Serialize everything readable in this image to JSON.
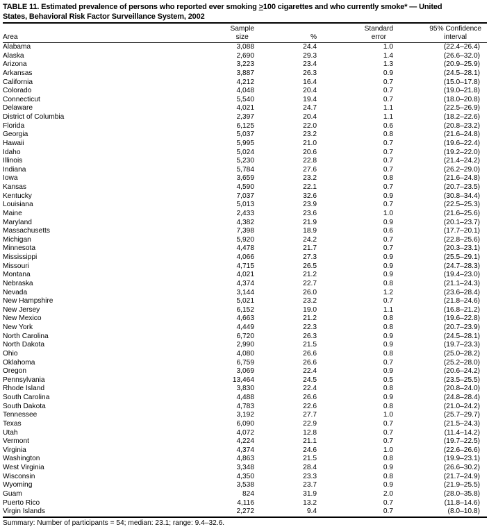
{
  "title": {
    "line1_pre": "TABLE 11. Estimated prevalence of persons who reported ever smoking ",
    "line1_geq": ">",
    "line1_post": "100 cigarettes and who currently smoke* — United",
    "line2": "States, Behavioral Risk Factor Surveillance System, 2002"
  },
  "columns": {
    "area": "Area",
    "sample_line1": "Sample",
    "sample_line2": "size",
    "percent": "%",
    "se_line1": "Standard",
    "se_line2": "error",
    "ci_line1": "95% Confidence",
    "ci_line2": "interval"
  },
  "rows": [
    {
      "area": "Alabama",
      "sample": "3,088",
      "pct": "24.4",
      "se": "1.0",
      "ci": "(22.4–26.4)"
    },
    {
      "area": "Alaska",
      "sample": "2,690",
      "pct": "29.3",
      "se": "1.4",
      "ci": "(26.6–32.0)"
    },
    {
      "area": "Arizona",
      "sample": "3,223",
      "pct": "23.4",
      "se": "1.3",
      "ci": "(20.9–25.9)"
    },
    {
      "area": "Arkansas",
      "sample": "3,887",
      "pct": "26.3",
      "se": "0.9",
      "ci": "(24.5–28.1)"
    },
    {
      "area": "California",
      "sample": "4,212",
      "pct": "16.4",
      "se": "0.7",
      "ci": "(15.0–17.8)"
    },
    {
      "area": "Colorado",
      "sample": "4,048",
      "pct": "20.4",
      "se": "0.7",
      "ci": "(19.0–21.8)"
    },
    {
      "area": "Connecticut",
      "sample": "5,540",
      "pct": "19.4",
      "se": "0.7",
      "ci": "(18.0–20.8)"
    },
    {
      "area": "Delaware",
      "sample": "4,021",
      "pct": "24.7",
      "se": "1.1",
      "ci": "(22.5–26.9)"
    },
    {
      "area": "District of Columbia",
      "sample": "2,397",
      "pct": "20.4",
      "se": "1.1",
      "ci": "(18.2–22.6)"
    },
    {
      "area": "Florida",
      "sample": "6,125",
      "pct": "22.0",
      "se": "0.6",
      "ci": "(20.8–23.2)"
    },
    {
      "area": "Georgia",
      "sample": "5,037",
      "pct": "23.2",
      "se": "0.8",
      "ci": "(21.6–24.8)"
    },
    {
      "area": "Hawaii",
      "sample": "5,995",
      "pct": "21.0",
      "se": "0.7",
      "ci": "(19.6–22.4)"
    },
    {
      "area": "Idaho",
      "sample": "5,024",
      "pct": "20.6",
      "se": "0.7",
      "ci": "(19.2–22.0)"
    },
    {
      "area": "Illinois",
      "sample": "5,230",
      "pct": "22.8",
      "se": "0.7",
      "ci": "(21.4–24.2)"
    },
    {
      "area": "Indiana",
      "sample": "5,784",
      "pct": "27.6",
      "se": "0.7",
      "ci": "(26.2–29.0)"
    },
    {
      "area": "Iowa",
      "sample": "3,659",
      "pct": "23.2",
      "se": "0.8",
      "ci": "(21.6–24.8)"
    },
    {
      "area": "Kansas",
      "sample": "4,590",
      "pct": "22.1",
      "se": "0.7",
      "ci": "(20.7–23.5)"
    },
    {
      "area": "Kentucky",
      "sample": "7,037",
      "pct": "32.6",
      "se": "0.9",
      "ci": "(30.8–34.4)"
    },
    {
      "area": "Louisiana",
      "sample": "5,013",
      "pct": "23.9",
      "se": "0.7",
      "ci": "(22.5–25.3)"
    },
    {
      "area": "Maine",
      "sample": "2,433",
      "pct": "23.6",
      "se": "1.0",
      "ci": "(21.6–25.6)"
    },
    {
      "area": "Maryland",
      "sample": "4,382",
      "pct": "21.9",
      "se": "0.9",
      "ci": "(20.1–23.7)"
    },
    {
      "area": "Massachusetts",
      "sample": "7,398",
      "pct": "18.9",
      "se": "0.6",
      "ci": "(17.7–20.1)"
    },
    {
      "area": "Michigan",
      "sample": "5,920",
      "pct": "24.2",
      "se": "0.7",
      "ci": "(22.8–25.6)"
    },
    {
      "area": "Minnesota",
      "sample": "4,478",
      "pct": "21.7",
      "se": "0.7",
      "ci": "(20.3–23.1)"
    },
    {
      "area": "Mississippi",
      "sample": "4,066",
      "pct": "27.3",
      "se": "0.9",
      "ci": "(25.5–29.1)"
    },
    {
      "area": "Missouri",
      "sample": "4,715",
      "pct": "26.5",
      "se": "0.9",
      "ci": "(24.7–28.3)"
    },
    {
      "area": "Montana",
      "sample": "4,021",
      "pct": "21.2",
      "se": "0.9",
      "ci": "(19.4–23.0)"
    },
    {
      "area": "Nebraska",
      "sample": "4,374",
      "pct": "22.7",
      "se": "0.8",
      "ci": "(21.1–24.3)"
    },
    {
      "area": "Nevada",
      "sample": "3,144",
      "pct": "26.0",
      "se": "1.2",
      "ci": "(23.6–28.4)"
    },
    {
      "area": "New Hampshire",
      "sample": "5,021",
      "pct": "23.2",
      "se": "0.7",
      "ci": "(21.8–24.6)"
    },
    {
      "area": "New Jersey",
      "sample": "6,152",
      "pct": "19.0",
      "se": "1.1",
      "ci": "(16.8–21.2)"
    },
    {
      "area": "New Mexico",
      "sample": "4,663",
      "pct": "21.2",
      "se": "0.8",
      "ci": "(19.6–22.8)"
    },
    {
      "area": "New York",
      "sample": "4,449",
      "pct": "22.3",
      "se": "0.8",
      "ci": "(20.7–23.9)"
    },
    {
      "area": "North Carolina",
      "sample": "6,720",
      "pct": "26.3",
      "se": "0.9",
      "ci": "(24.5–28.1)"
    },
    {
      "area": "North Dakota",
      "sample": "2,990",
      "pct": "21.5",
      "se": "0.9",
      "ci": "(19.7–23.3)"
    },
    {
      "area": "Ohio",
      "sample": "4,080",
      "pct": "26.6",
      "se": "0.8",
      "ci": "(25.0–28.2)"
    },
    {
      "area": "Oklahoma",
      "sample": "6,759",
      "pct": "26.6",
      "se": "0.7",
      "ci": "(25.2–28.0)"
    },
    {
      "area": "Oregon",
      "sample": "3,069",
      "pct": "22.4",
      "se": "0.9",
      "ci": "(20.6–24.2)"
    },
    {
      "area": "Pennsylvania",
      "sample": "13,464",
      "pct": "24.5",
      "se": "0.5",
      "ci": "(23.5–25.5)"
    },
    {
      "area": "Rhode Island",
      "sample": "3,830",
      "pct": "22.4",
      "se": "0.8",
      "ci": "(20.8–24.0)"
    },
    {
      "area": "South Carolina",
      "sample": "4,488",
      "pct": "26.6",
      "se": "0.9",
      "ci": "(24.8–28.4)"
    },
    {
      "area": "South Dakota",
      "sample": "4,783",
      "pct": "22.6",
      "se": "0.8",
      "ci": "(21.0–24.2)"
    },
    {
      "area": "Tennessee",
      "sample": "3,192",
      "pct": "27.7",
      "se": "1.0",
      "ci": "(25.7–29.7)"
    },
    {
      "area": "Texas",
      "sample": "6,090",
      "pct": "22.9",
      "se": "0.7",
      "ci": "(21.5–24.3)"
    },
    {
      "area": "Utah",
      "sample": "4,072",
      "pct": "12.8",
      "se": "0.7",
      "ci": "(11.4–14.2)"
    },
    {
      "area": "Vermont",
      "sample": "4,224",
      "pct": "21.1",
      "se": "0.7",
      "ci": "(19.7–22.5)"
    },
    {
      "area": "Virginia",
      "sample": "4,374",
      "pct": "24.6",
      "se": "1.0",
      "ci": "(22.6–26.6)"
    },
    {
      "area": "Washington",
      "sample": "4,863",
      "pct": "21.5",
      "se": "0.8",
      "ci": "(19.9–23.1)"
    },
    {
      "area": "West Virginia",
      "sample": "3,348",
      "pct": "28.4",
      "se": "0.9",
      "ci": "(26.6–30.2)"
    },
    {
      "area": "Wisconsin",
      "sample": "4,350",
      "pct": "23.3",
      "se": "0.8",
      "ci": "(21.7–24.9)"
    },
    {
      "area": "Wyoming",
      "sample": "3,538",
      "pct": "23.7",
      "se": "0.9",
      "ci": "(21.9–25.5)"
    },
    {
      "area": "Guam",
      "sample": "824",
      "pct": "31.9",
      "se": "2.0",
      "ci": "(28.0–35.8)"
    },
    {
      "area": "Puerto Rico",
      "sample": "4,116",
      "pct": "13.2",
      "se": "0.7",
      "ci": "(11.8–14.6)"
    },
    {
      "area": "Virgin Islands",
      "sample": "2,272",
      "pct": "9.4",
      "se": "0.7",
      "ci": "(8.0–10.8)"
    }
  ],
  "footer": "Summary: Number of participants = 54; median: 23.1; range: 9.4–32.6.",
  "colors": {
    "text": "#000000",
    "background": "#ffffff",
    "rule": "#000000"
  }
}
